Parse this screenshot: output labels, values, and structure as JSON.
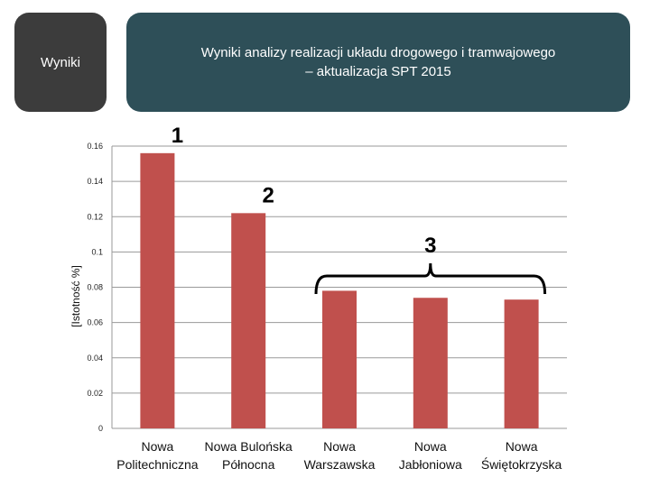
{
  "header": {
    "section_label": "Wyniki",
    "title": "Wyniki analizy realizacji układu drogowego i tramwajowego\n– aktualizacja SPT 2015"
  },
  "chart_data": {
    "type": "bar",
    "categories": [
      [
        "Nowa",
        "Politechniczna"
      ],
      [
        "Nowa Bulońska",
        "Północna"
      ],
      [
        "Nowa",
        "Warszawska"
      ],
      [
        "Nowa",
        "Jabłoniowa"
      ],
      [
        "Nowa",
        "Świętokrzyska"
      ]
    ],
    "values": [
      0.156,
      0.122,
      0.078,
      0.074,
      0.073
    ],
    "ylabel": "[Istotność %]",
    "ylim": [
      0,
      0.16
    ],
    "yticks": [
      "0",
      "0.02",
      "0.04",
      "0.06",
      "0.08",
      "0.1",
      "0.12",
      "0.14",
      "0.16"
    ],
    "grid": true,
    "bar_color": "#c0504d",
    "annotations": [
      {
        "label": "1",
        "category_index": 0
      },
      {
        "label": "2",
        "category_index": 1
      },
      {
        "label": "3",
        "category_index": [
          2,
          3,
          4
        ],
        "type": "bracket"
      }
    ]
  }
}
